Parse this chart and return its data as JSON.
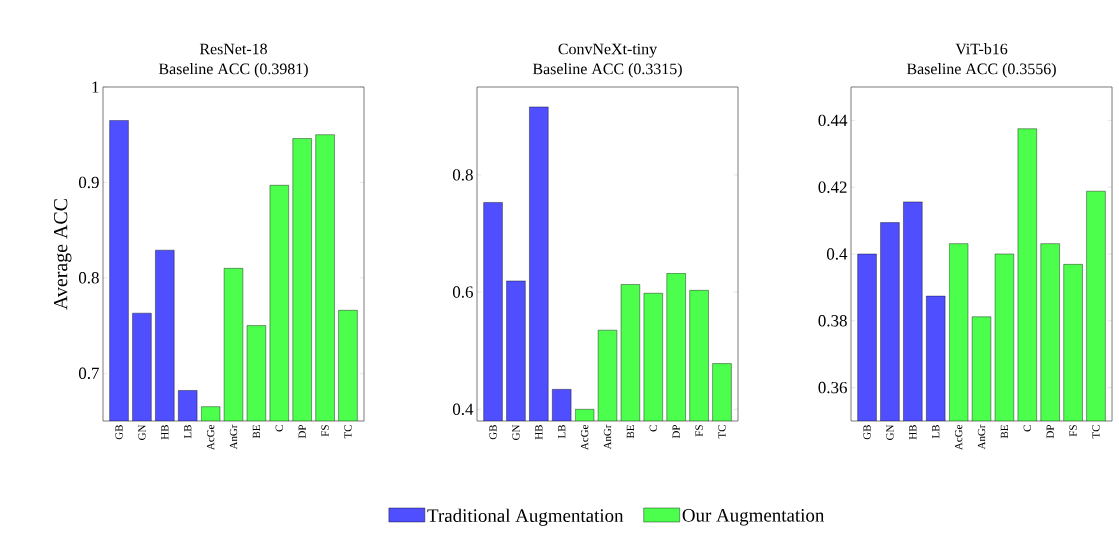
{
  "chart_data": [
    {
      "type": "bar",
      "title": "ResNet-18",
      "subtitle": "Baseline ACC (0.3981)",
      "ylabel": "Average ACC",
      "categories": [
        "GB",
        "GN",
        "HB",
        "LB",
        "AcGe",
        "AnGr",
        "BE",
        "C",
        "DP",
        "FS",
        "TC"
      ],
      "series": [
        {
          "color": "#4f4fff",
          "values": [
            0.965,
            0.763,
            0.829,
            0.682,
            null,
            null,
            null,
            null,
            null,
            null,
            null
          ]
        },
        {
          "color": "#4dff4d",
          "values": [
            null,
            null,
            null,
            null,
            0.665,
            0.81,
            0.75,
            0.897,
            0.946,
            0.95,
            0.766
          ]
        }
      ],
      "ylim": [
        0.65,
        1
      ],
      "yticks": [
        0.7,
        0.8,
        0.9,
        1
      ]
    },
    {
      "type": "bar",
      "title": "ConvNeXt-tiny",
      "subtitle": "Baseline ACC (0.3315)",
      "categories": [
        "GB",
        "GN",
        "HB",
        "LB",
        "AcGe",
        "AnGr",
        "BE",
        "C",
        "DP",
        "FS",
        "TC"
      ],
      "series": [
        {
          "name": "Traditional Augmentation",
          "color": "#4f4fff",
          "values": [
            0.753,
            0.619,
            0.916,
            0.434,
            null,
            null,
            null,
            null,
            null,
            null,
            null
          ]
        },
        {
          "name": "Our Augmentation",
          "color": "#4dff4d",
          "values": [
            null,
            null,
            null,
            null,
            0.4,
            0.535,
            0.613,
            0.598,
            0.632,
            0.603,
            0.478
          ]
        }
      ],
      "ylim": [
        0.38,
        0.95
      ],
      "yticks": [
        0.4,
        0.6,
        0.8
      ],
      "legend": "bottom"
    },
    {
      "type": "bar",
      "title": "ViT-b16",
      "subtitle": "Baseline ACC (0.3556)",
      "categories": [
        "GB",
        "GN",
        "HB",
        "LB",
        "AcGe",
        "AnGr",
        "BE",
        "C",
        "DP",
        "FS",
        "TC"
      ],
      "series": [
        {
          "color": "#4f4fff",
          "values": [
            0.4,
            0.4094,
            0.4156,
            0.3874,
            null,
            null,
            null,
            null,
            null,
            null,
            null
          ]
        },
        {
          "color": "#4dff4d",
          "values": [
            null,
            null,
            null,
            null,
            0.4031,
            0.3812,
            0.4,
            0.4375,
            0.4031,
            0.3969,
            0.4188
          ]
        }
      ],
      "ylim": [
        0.35,
        0.45
      ],
      "yticks": [
        0.36,
        0.38,
        0.4,
        0.42,
        0.44
      ]
    }
  ]
}
